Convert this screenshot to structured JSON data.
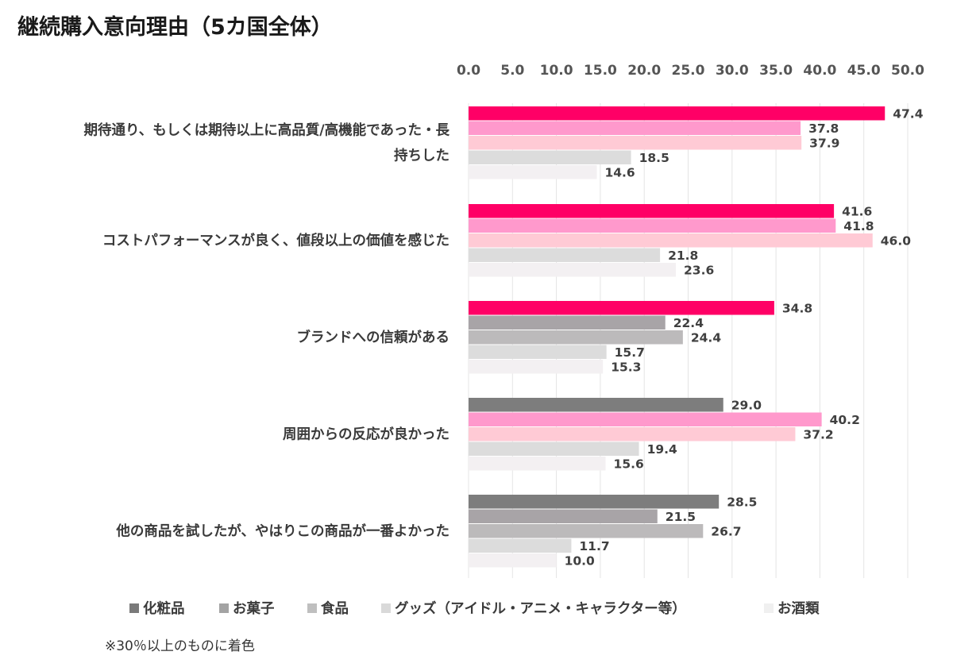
{
  "chart_data": {
    "type": "bar",
    "orientation": "horizontal",
    "title": "継続購入意向理由（5カ国全体）",
    "xlim": [
      0,
      50
    ],
    "x_ticks": [
      "0.0",
      "5.0",
      "10.0",
      "15.0",
      "20.0",
      "25.0",
      "30.0",
      "35.0",
      "40.0",
      "45.0",
      "50.0"
    ],
    "grid": "vertical gridlines",
    "legend_position": "bottom",
    "categories": [
      [
        "期待通り、もしくは期待以上に高品質/高機能であった・長",
        "持ちした"
      ],
      [
        "コストパフォーマンスが良く、値段以上の価値を感じた"
      ],
      [
        "ブランドへの信頼がある"
      ],
      [
        "周囲からの反応が良かった"
      ],
      [
        "他の商品を試したが、やはりこの商品が一番よかった"
      ]
    ],
    "series": [
      {
        "name": "化粧品",
        "values": [
          47.4,
          41.6,
          34.8,
          29.0,
          28.5
        ],
        "legend_color": "#7a7a7a"
      },
      {
        "name": "お菓子",
        "values": [
          37.8,
          41.8,
          22.4,
          40.2,
          21.5
        ],
        "legend_color": "#a3a3a3"
      },
      {
        "name": "食品",
        "values": [
          37.9,
          46.0,
          24.4,
          37.2,
          26.7
        ],
        "legend_color": "#bfbfbf"
      },
      {
        "name": "グッズ（アイドル・アニメ・キャラクター等）",
        "values": [
          18.5,
          21.8,
          15.7,
          19.4,
          11.7
        ],
        "legend_color": "#d9d9d9"
      },
      {
        "name": "お酒類",
        "values": [
          14.6,
          23.6,
          15.3,
          15.6,
          10.0
        ],
        "legend_color": "#f0f0f0"
      }
    ],
    "highlight_threshold": 30,
    "colors": {
      "highlight": [
        "#ff0066",
        "#ff99cc",
        "#ffcad5",
        "#dcdcdc",
        "#f3f0f2"
      ],
      "normal": [
        "#7d7d7d",
        "#a8a4a7",
        "#bcbabb",
        "#dcdcdc",
        "#f3f0f2"
      ]
    },
    "footnote": "※30％以上のものに着色"
  }
}
